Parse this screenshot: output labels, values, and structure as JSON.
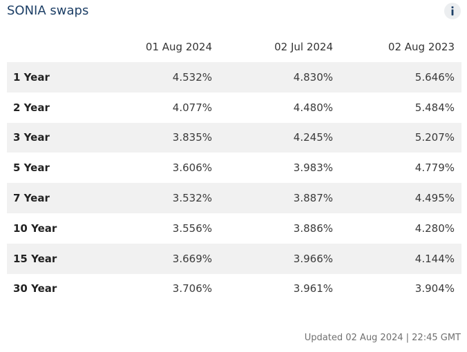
{
  "widget": {
    "title": "SONIA swaps",
    "info_icon": "info-icon"
  },
  "table": {
    "columns": [
      "",
      "01 Aug 2024",
      "02 Jul 2024",
      "02 Aug 2023"
    ],
    "rows": [
      {
        "term": "1 Year",
        "values": [
          "4.532%",
          "4.830%",
          "5.646%"
        ]
      },
      {
        "term": "2 Year",
        "values": [
          "4.077%",
          "4.480%",
          "5.484%"
        ]
      },
      {
        "term": "3 Year",
        "values": [
          "3.835%",
          "4.245%",
          "5.207%"
        ]
      },
      {
        "term": "5 Year",
        "values": [
          "3.606%",
          "3.983%",
          "4.779%"
        ]
      },
      {
        "term": "7 Year",
        "values": [
          "3.532%",
          "3.887%",
          "4.495%"
        ]
      },
      {
        "term": "10 Year",
        "values": [
          "3.556%",
          "3.886%",
          "4.280%"
        ]
      },
      {
        "term": "15 Year",
        "values": [
          "3.669%",
          "3.966%",
          "4.144%"
        ]
      },
      {
        "term": "30 Year",
        "values": [
          "3.706%",
          "3.961%",
          "3.904%"
        ]
      }
    ]
  },
  "footer": {
    "updated": "Updated 02 Aug 2024 | 22:45 GMT"
  },
  "colors": {
    "title": "#1d3f66",
    "stripe": "#f1f1f1",
    "info_bg": "#eceef0"
  }
}
